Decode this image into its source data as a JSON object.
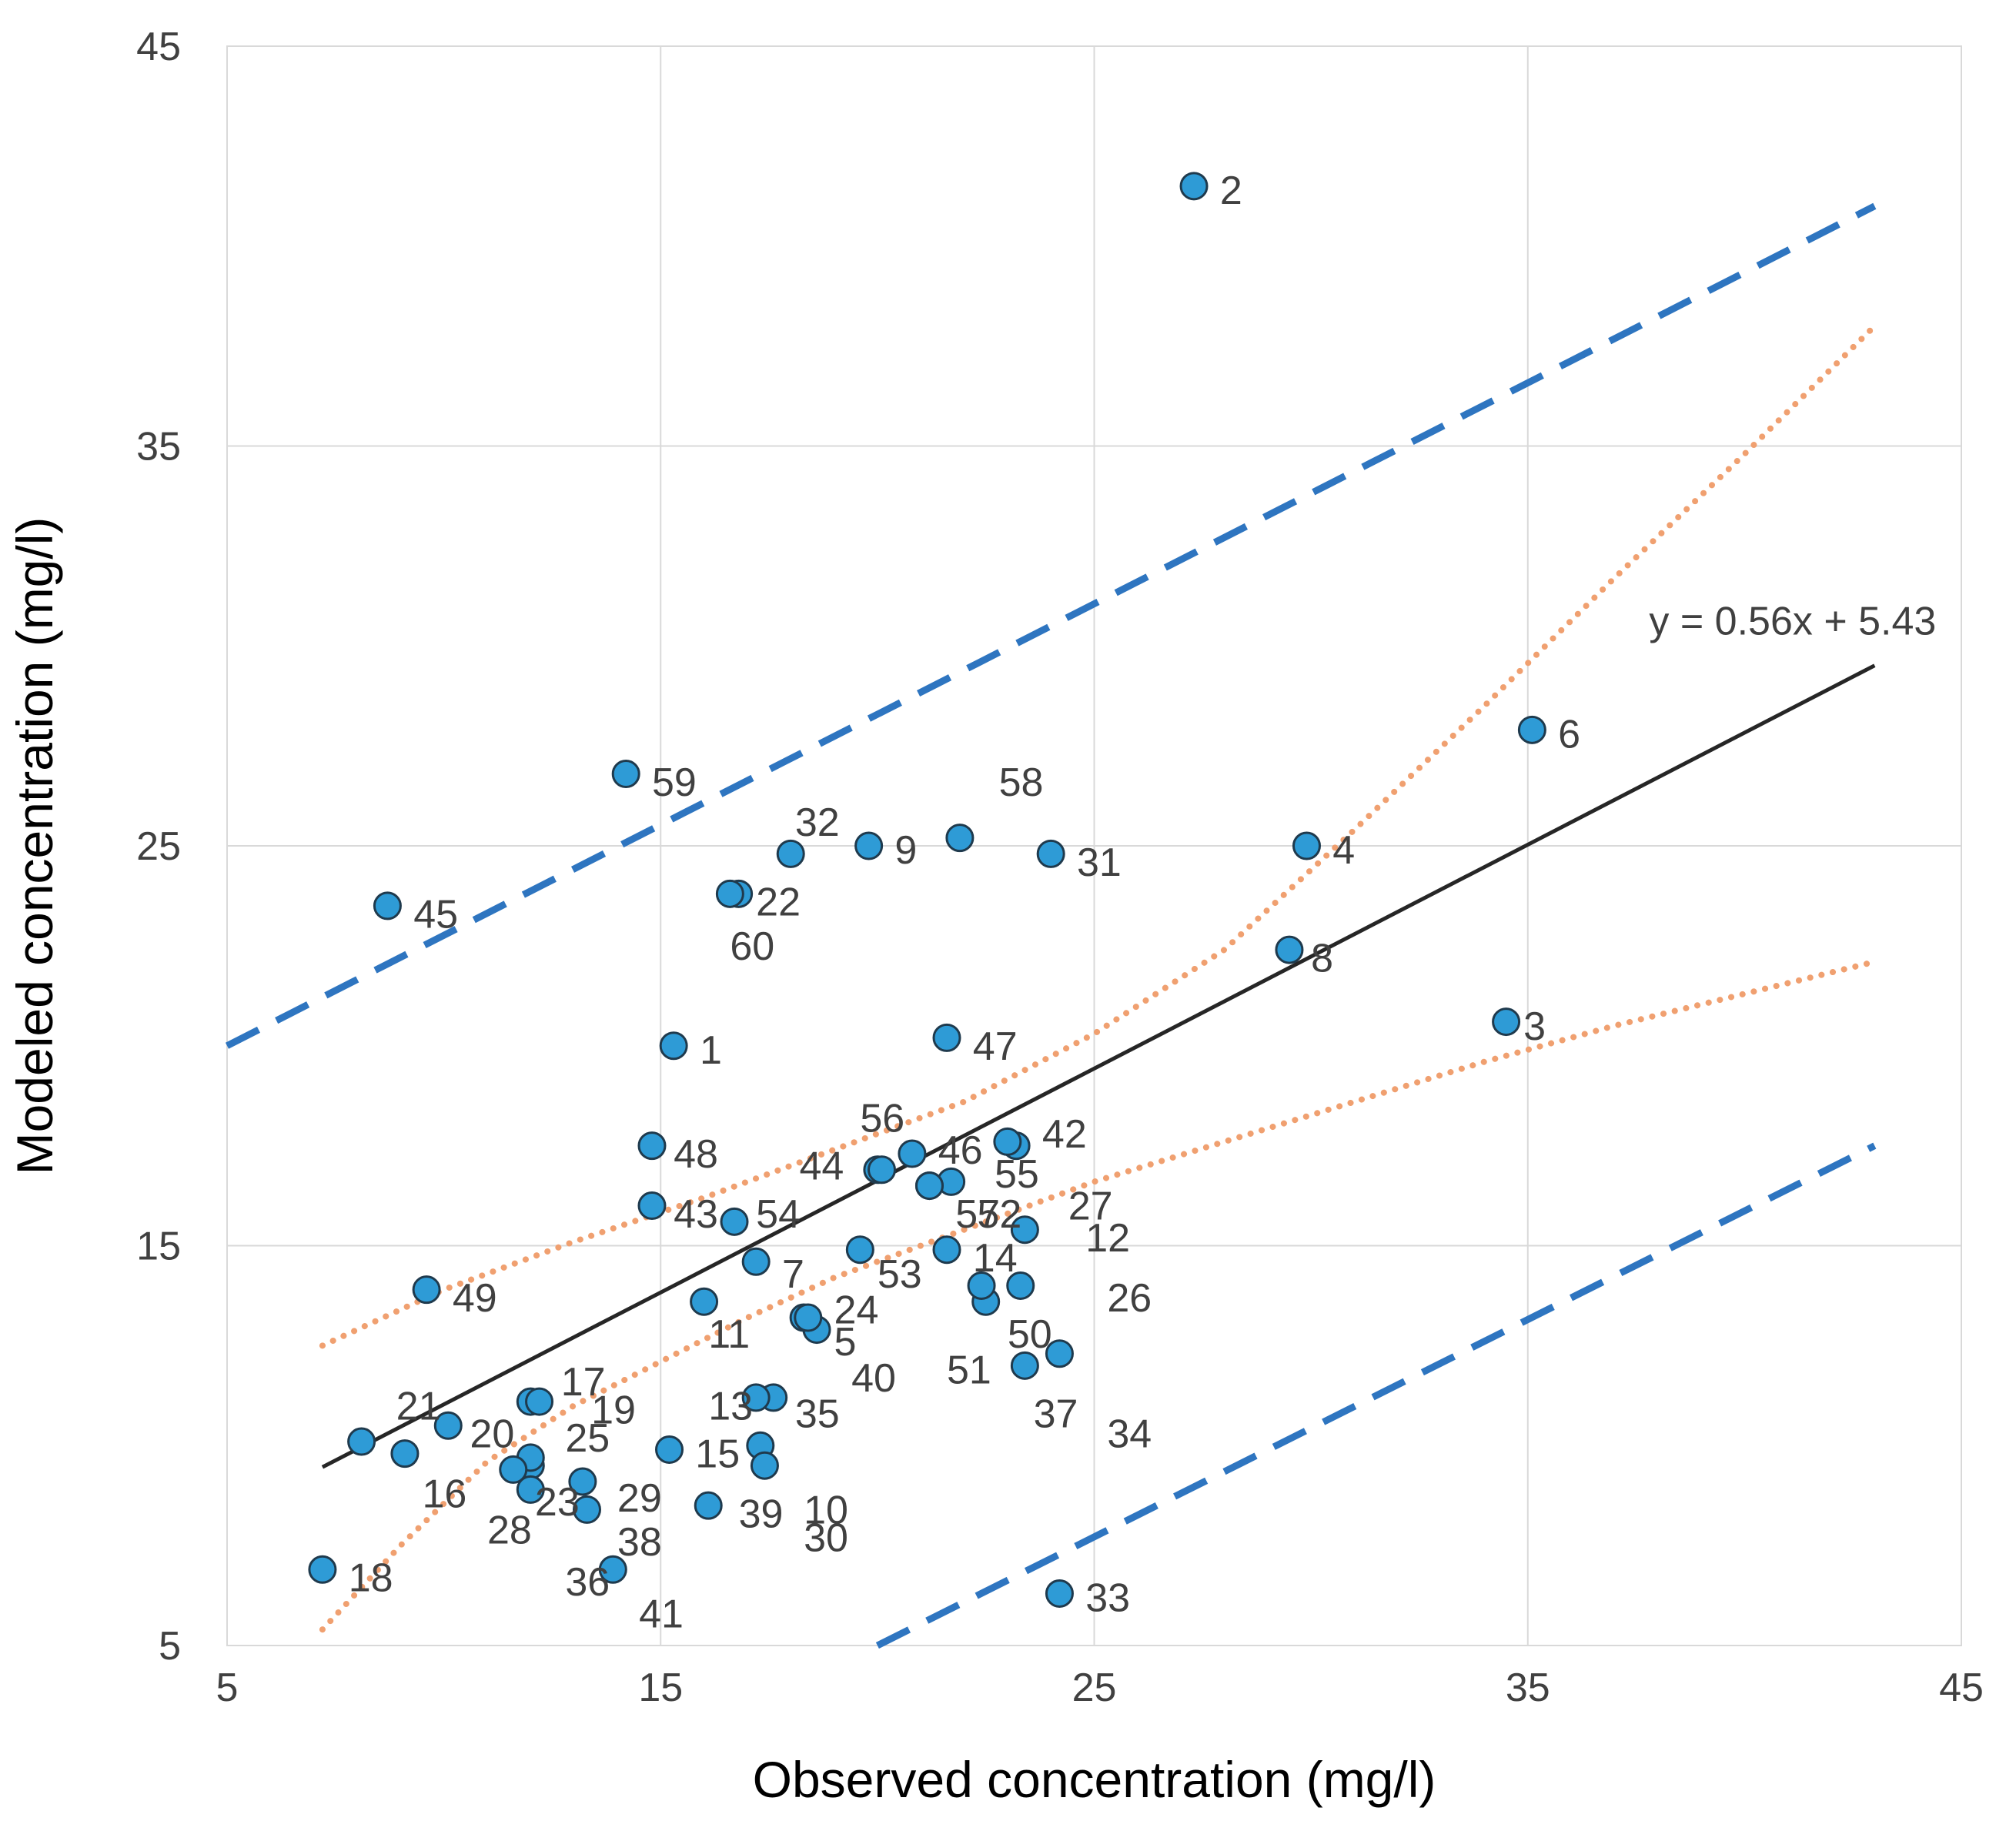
{
  "chart_data": {
    "type": "scatter",
    "title": "",
    "xlabel": "Observed concentration (mg/l)",
    "ylabel": "Modeled concentration (mg/l)",
    "xlim": [
      5,
      45
    ],
    "ylim": [
      5,
      45
    ],
    "xticks": [
      5,
      15,
      25,
      35,
      45
    ],
    "yticks": [
      5,
      15,
      25,
      35,
      45
    ],
    "grid": true,
    "equation": "y = 0.56x + 5.43",
    "colors": {
      "points": "#2E9BD6",
      "point_edge": "#1F3A4D",
      "regression": "#262626",
      "prediction_interval": "#2E75C0",
      "confidence_interval": "#F0A070",
      "grid": "#D9D9D9"
    },
    "regression": {
      "slope": 0.56,
      "intercept": 5.43,
      "x": [
        7.2,
        43.0
      ]
    },
    "prediction_interval": {
      "upper": {
        "x": [
          5.0,
          43.0
        ],
        "y": [
          20.0,
          41.0
        ]
      },
      "lower": {
        "x": [
          20.0,
          43.0
        ],
        "y": [
          5.0,
          17.5
        ]
      }
    },
    "confidence_interval": {
      "upper": {
        "x": [
          7.2,
          10,
          13,
          16,
          19,
          22,
          25,
          28,
          31,
          34,
          37,
          40,
          43
        ],
        "y": [
          12.5,
          13.9,
          15.1,
          16.2,
          17.4,
          18.6,
          20.3,
          22.4,
          25.4,
          28.5,
          31.7,
          34.8,
          38.0
        ]
      },
      "lower": {
        "x": [
          7.2,
          9,
          11,
          13,
          15,
          17,
          19,
          22,
          25,
          28,
          31,
          34,
          37,
          40,
          43
        ],
        "y": [
          5.4,
          7.5,
          9.6,
          11.0,
          12.1,
          13.2,
          14.2,
          15.4,
          16.6,
          17.6,
          18.6,
          19.6,
          20.5,
          21.3,
          22.1
        ]
      }
    },
    "points": [
      {
        "id": "1",
        "x": 15.3,
        "y": 20.0,
        "lx": 15.9,
        "ly": 19.9
      },
      {
        "id": "2",
        "x": 27.3,
        "y": 41.5,
        "lx": 27.9,
        "ly": 41.4
      },
      {
        "id": "3",
        "x": 34.5,
        "y": 20.6,
        "lx": 34.9,
        "ly": 20.5
      },
      {
        "id": "4",
        "x": 29.9,
        "y": 25.0,
        "lx": 30.5,
        "ly": 24.9
      },
      {
        "id": "5",
        "x": 18.6,
        "y": 12.9,
        "lx": 19.0,
        "ly": 12.6
      },
      {
        "id": "6",
        "x": 35.1,
        "y": 27.9,
        "lx": 35.7,
        "ly": 27.8
      },
      {
        "id": "7",
        "x": 17.2,
        "y": 14.6,
        "lx": 17.8,
        "ly": 14.3
      },
      {
        "id": "8",
        "x": 29.5,
        "y": 22.4,
        "lx": 30.0,
        "ly": 22.2
      },
      {
        "id": "9",
        "x": 19.8,
        "y": 25.0,
        "lx": 20.4,
        "ly": 24.9
      },
      {
        "id": "10",
        "x": 17.3,
        "y": 10.0,
        "lx": 18.3,
        "ly": 8.4
      },
      {
        "id": "11",
        "x": 16.0,
        "y": 13.6,
        "lx": 16.1,
        "ly": 12.8
      },
      {
        "id": "12",
        "x": 23.4,
        "y": 15.4,
        "lx": 24.8,
        "ly": 15.2
      },
      {
        "id": "13",
        "x": 17.6,
        "y": 11.2,
        "lx": 16.1,
        "ly": 11.0
      },
      {
        "id": "14",
        "x": 21.6,
        "y": 14.9,
        "lx": 22.2,
        "ly": 14.7
      },
      {
        "id": "15",
        "x": 15.2,
        "y": 9.9,
        "lx": 15.8,
        "ly": 9.8
      },
      {
        "id": "16",
        "x": 9.1,
        "y": 9.8,
        "lx": 9.5,
        "ly": 8.8
      },
      {
        "id": "17",
        "x": 12.0,
        "y": 11.1,
        "lx": 12.7,
        "ly": 11.6
      },
      {
        "id": "18",
        "x": 7.2,
        "y": 6.9,
        "lx": 7.8,
        "ly": 6.7
      },
      {
        "id": "19",
        "x": 12.2,
        "y": 11.1,
        "lx": 13.4,
        "ly": 10.9
      },
      {
        "id": "20",
        "x": 10.1,
        "y": 10.5,
        "lx": 10.6,
        "ly": 10.3
      },
      {
        "id": "21",
        "x": 8.1,
        "y": 10.1,
        "lx": 8.9,
        "ly": 11.0
      },
      {
        "id": "22",
        "x": 16.8,
        "y": 23.8,
        "lx": 17.2,
        "ly": 23.6
      },
      {
        "id": "23",
        "x": 12.0,
        "y": 9.5,
        "lx": 12.1,
        "ly": 8.6
      },
      {
        "id": "24",
        "x": 18.3,
        "y": 13.2,
        "lx": 19.0,
        "ly": 13.4
      },
      {
        "id": "25",
        "x": 12.0,
        "y": 9.7,
        "lx": 12.8,
        "ly": 10.2
      },
      {
        "id": "26",
        "x": 23.3,
        "y": 14.0,
        "lx": 25.3,
        "ly": 13.7
      },
      {
        "id": "27",
        "x": 23.2,
        "y": 17.5,
        "lx": 24.4,
        "ly": 16.0
      },
      {
        "id": "28",
        "x": 11.6,
        "y": 9.4,
        "lx": 11.0,
        "ly": 7.9
      },
      {
        "id": "29",
        "x": 13.2,
        "y": 9.1,
        "lx": 14.0,
        "ly": 8.7
      },
      {
        "id": "30",
        "x": 17.4,
        "y": 9.5,
        "lx": 18.3,
        "ly": 7.7
      },
      {
        "id": "31",
        "x": 24.0,
        "y": 24.8,
        "lx": 24.6,
        "ly": 24.6
      },
      {
        "id": "32",
        "x": 18.0,
        "y": 24.8,
        "lx": 18.1,
        "ly": 25.6
      },
      {
        "id": "33",
        "x": 24.2,
        "y": 6.3,
        "lx": 24.8,
        "ly": 6.2
      },
      {
        "id": "34",
        "x": 24.2,
        "y": 12.3,
        "lx": 25.3,
        "ly": 10.3
      },
      {
        "id": "35",
        "x": 17.2,
        "y": 11.2,
        "lx": 18.1,
        "ly": 10.8
      },
      {
        "id": "36",
        "x": 13.3,
        "y": 8.4,
        "lx": 12.8,
        "ly": 6.6
      },
      {
        "id": "37",
        "x": 23.4,
        "y": 12.0,
        "lx": 23.6,
        "ly": 10.8
      },
      {
        "id": "38",
        "x": 13.9,
        "y": 6.9,
        "lx": 14.0,
        "ly": 7.6
      },
      {
        "id": "39",
        "x": 16.1,
        "y": 8.5,
        "lx": 16.8,
        "ly": 8.3
      },
      {
        "id": "40",
        "x": 18.4,
        "y": 13.2,
        "lx": 19.4,
        "ly": 11.7
      },
      {
        "id": "41",
        "x": 12.0,
        "y": 8.9,
        "lx": 14.5,
        "ly": 5.8
      },
      {
        "id": "42",
        "x": 23.0,
        "y": 17.6,
        "lx": 23.8,
        "ly": 17.8
      },
      {
        "id": "43",
        "x": 14.8,
        "y": 16.0,
        "lx": 15.3,
        "ly": 15.8
      },
      {
        "id": "44",
        "x": 20.0,
        "y": 16.9,
        "lx": 18.2,
        "ly": 17.0
      },
      {
        "id": "45",
        "x": 8.7,
        "y": 23.5,
        "lx": 9.3,
        "ly": 23.3
      },
      {
        "id": "46",
        "x": 20.8,
        "y": 17.3,
        "lx": 21.4,
        "ly": 17.4
      },
      {
        "id": "47",
        "x": 21.6,
        "y": 20.2,
        "lx": 22.2,
        "ly": 20.0
      },
      {
        "id": "48",
        "x": 14.8,
        "y": 17.5,
        "lx": 15.3,
        "ly": 17.3
      },
      {
        "id": "49",
        "x": 9.6,
        "y": 13.9,
        "lx": 10.2,
        "ly": 13.7
      },
      {
        "id": "50",
        "x": 22.5,
        "y": 13.6,
        "lx": 23.0,
        "ly": 12.8
      },
      {
        "id": "51",
        "x": 22.4,
        "y": 14.0,
        "lx": 21.6,
        "ly": 11.9
      },
      {
        "id": "52",
        "x": 21.7,
        "y": 16.6,
        "lx": 22.3,
        "ly": 15.8
      },
      {
        "id": "53",
        "x": 19.6,
        "y": 14.9,
        "lx": 20.0,
        "ly": 14.3
      },
      {
        "id": "54",
        "x": 16.7,
        "y": 15.6,
        "lx": 17.2,
        "ly": 15.8
      },
      {
        "id": "55",
        "x": 21.2,
        "y": 16.5,
        "lx": 22.7,
        "ly": 16.8
      },
      {
        "id": "56",
        "x": 20.1,
        "y": 16.9,
        "lx": 19.6,
        "ly": 18.2
      },
      {
        "id": "57",
        "x": 21.2,
        "y": 16.5,
        "lx": 21.8,
        "ly": 15.8
      },
      {
        "id": "58",
        "x": 21.9,
        "y": 25.2,
        "lx": 22.8,
        "ly": 26.6
      },
      {
        "id": "59",
        "x": 14.2,
        "y": 26.8,
        "lx": 14.8,
        "ly": 26.6
      },
      {
        "id": "60",
        "x": 16.6,
        "y": 23.8,
        "lx": 16.6,
        "ly": 22.5
      }
    ]
  }
}
